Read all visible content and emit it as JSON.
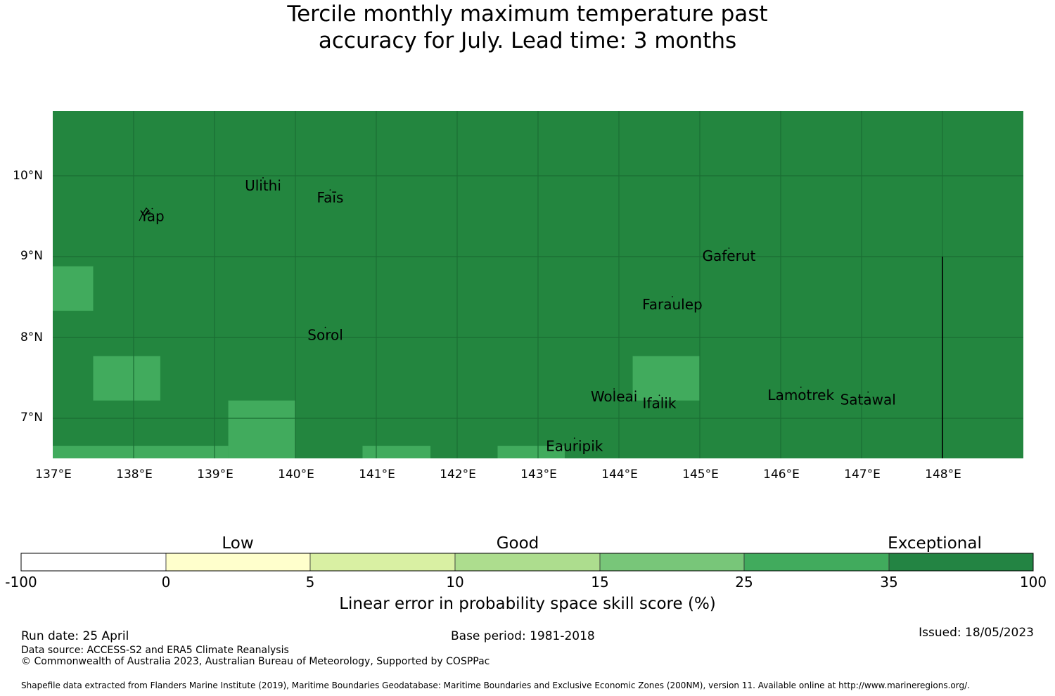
{
  "title": {
    "line1": "Tercile monthly maximum temperature past",
    "line2": "accuracy for July. Lead time: 3 months"
  },
  "map": {
    "background_color": "#23863f",
    "grid_color": "#1a6e33",
    "lat_labels": [
      "10°N",
      "9°N",
      "8°N",
      "7°N"
    ],
    "lon_labels": [
      "137°E",
      "138°E",
      "139°E",
      "140°E",
      "141°E",
      "142°E",
      "143°E",
      "144°E",
      "145°E",
      "146°E",
      "147°E",
      "148°E"
    ],
    "cells": [
      {
        "lon": [
          137.0,
          137.5
        ],
        "lat": [
          8.33,
          8.88
        ],
        "category": "25-35"
      },
      {
        "lon": [
          137.5,
          138.33
        ],
        "lat": [
          7.22,
          7.77
        ],
        "category": "25-35"
      },
      {
        "lon": [
          139.17,
          140.0
        ],
        "lat": [
          6.5,
          7.22
        ],
        "category": "25-35"
      },
      {
        "lon": [
          137.0,
          139.17
        ],
        "lat": [
          6.5,
          6.66
        ],
        "category": "25-35"
      },
      {
        "lon": [
          140.83,
          141.67
        ],
        "lat": [
          6.5,
          6.66
        ],
        "category": "25-35"
      },
      {
        "lon": [
          142.5,
          143.33
        ],
        "lat": [
          6.5,
          6.66
        ],
        "category": "25-35"
      },
      {
        "lon": [
          144.17,
          145.0
        ],
        "lat": [
          7.22,
          7.77
        ],
        "category": "25-35"
      }
    ],
    "places": [
      {
        "name": "Ulithi",
        "lon": 139.6,
        "lat": 9.87
      },
      {
        "name": "Faīs",
        "lon": 140.43,
        "lat": 9.72
      },
      {
        "name": "Yap",
        "lon": 138.23,
        "lat": 9.49
      },
      {
        "name": "Gaferut",
        "lon": 145.36,
        "lat": 9.0
      },
      {
        "name": "Faraulep",
        "lon": 144.66,
        "lat": 8.4
      },
      {
        "name": "Sorol",
        "lon": 140.37,
        "lat": 8.02
      },
      {
        "name": "Woleai",
        "lon": 143.94,
        "lat": 7.26
      },
      {
        "name": "Lamotrek",
        "lon": 146.25,
        "lat": 7.28
      },
      {
        "name": "Satawal",
        "lon": 147.08,
        "lat": 7.22
      },
      {
        "name": "Ifalik",
        "lon": 144.5,
        "lat": 7.18
      },
      {
        "name": "Eauripik",
        "lon": 143.45,
        "lat": 6.65
      }
    ],
    "boundary_line": {
      "lon": 148.0,
      "lat_from": 6.5,
      "lat_to": 9.0
    }
  },
  "legend": {
    "category_labels": [
      "Low",
      "Good",
      "Exceptional"
    ],
    "ticks": [
      "-100",
      "0",
      "5",
      "10",
      "15",
      "25",
      "35",
      "100"
    ],
    "colors": [
      "#ffffff",
      "#ffffcc",
      "#d9f0a3",
      "#addd8e",
      "#78c679",
      "#41ab5d",
      "#238443"
    ],
    "title": "Linear error in probability space skill score (%)"
  },
  "footer": {
    "run_date": "Run date: 25 April",
    "base_period": "Base period: 1981-2018",
    "issued": "Issued: 18/05/2023",
    "data_source": "Data source: ACCESS-S2 and ERA5 Climate Reanalysis",
    "copyright": "© Commonwealth of Australia 2023, Australian Bureau of Meteorology, Supported by COSPPac",
    "shapefile": "Shapefile data extracted from Flanders Marine Institute (2019), Maritime Boundaries Geodatabase: Maritime Boundaries and Exclusive Economic Zones (200NM), version 11. Available online at http://www.marineregions.org/."
  }
}
